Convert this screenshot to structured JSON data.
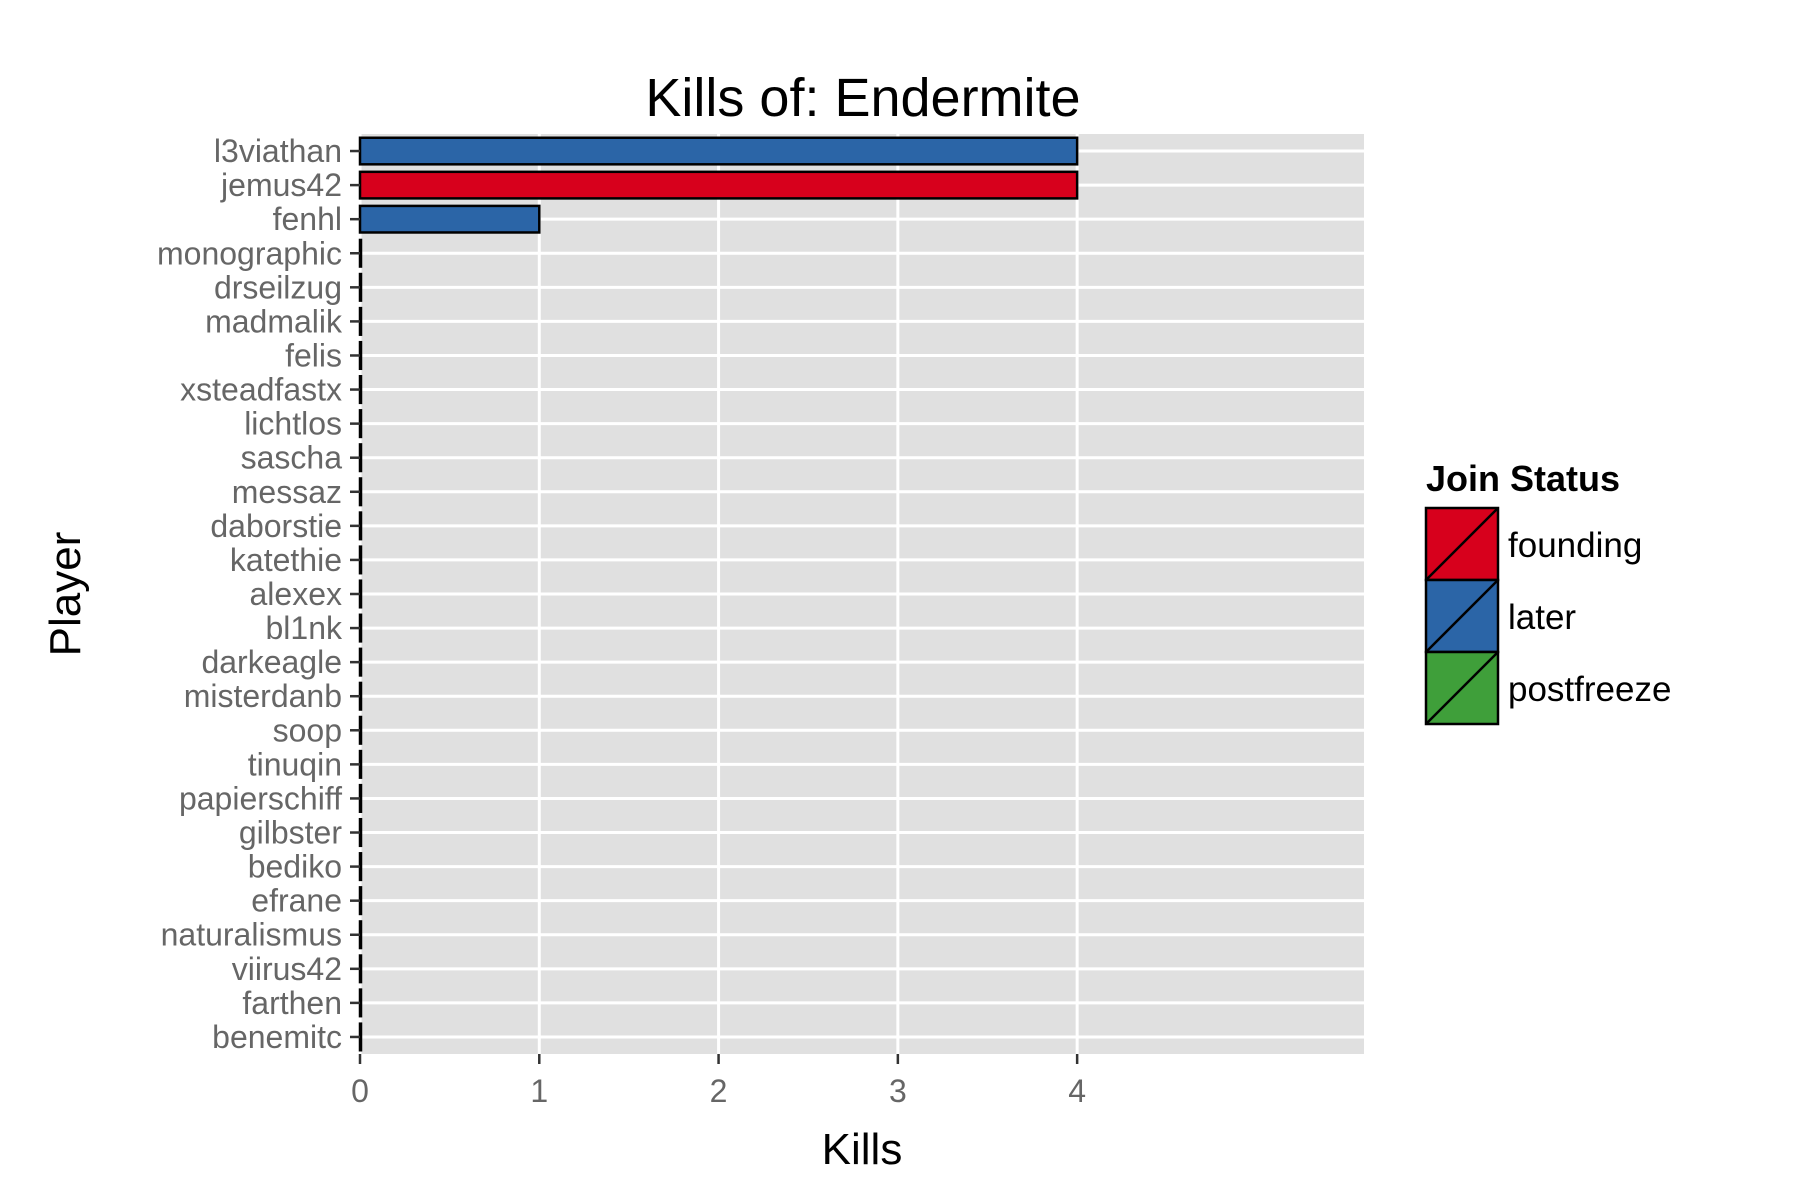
{
  "chart_data": {
    "type": "bar",
    "orientation": "horizontal",
    "title": "Kills of: Endermite",
    "xlabel": "Kills",
    "ylabel": "Player",
    "xlim": [
      0,
      5.6
    ],
    "xticks": [
      0,
      1,
      2,
      3,
      4
    ],
    "grid": true,
    "legend_position": "right",
    "categories": [
      "l3viathan",
      "jemus42",
      "fenhl",
      "monographic",
      "drseilzug",
      "madmalik",
      "felis",
      "xsteadfastx",
      "lichtlos",
      "sascha",
      "messaz",
      "daborstie",
      "katethie",
      "alexex",
      "bl1nk",
      "darkeagle",
      "misterdanb",
      "soop",
      "tinuqin",
      "papierschiff",
      "gilbster",
      "bediko",
      "efrane",
      "naturalismus",
      "viirus42",
      "farthen",
      "benemitc"
    ],
    "values": [
      4,
      4,
      1,
      0,
      0,
      0,
      0,
      0,
      0,
      0,
      0,
      0,
      0,
      0,
      0,
      0,
      0,
      0,
      0,
      0,
      0,
      0,
      0,
      0,
      0,
      0,
      0
    ],
    "groups": [
      "later",
      "founding",
      "later",
      "later",
      "later",
      "later",
      "later",
      "later",
      "later",
      "later",
      "later",
      "later",
      "later",
      "later",
      "later",
      "later",
      "later",
      "later",
      "later",
      "later",
      "later",
      "later",
      "later",
      "later",
      "later",
      "later",
      "later"
    ],
    "legend": {
      "title": "Join Status",
      "items": [
        {
          "label": "founding",
          "color": "#d7001c"
        },
        {
          "label": "later",
          "color": "#2b65a7"
        },
        {
          "label": "postfreeze",
          "color": "#3f9f3a"
        }
      ]
    },
    "panel_color": "#e0e0e0",
    "grid_color": "#ffffff"
  }
}
